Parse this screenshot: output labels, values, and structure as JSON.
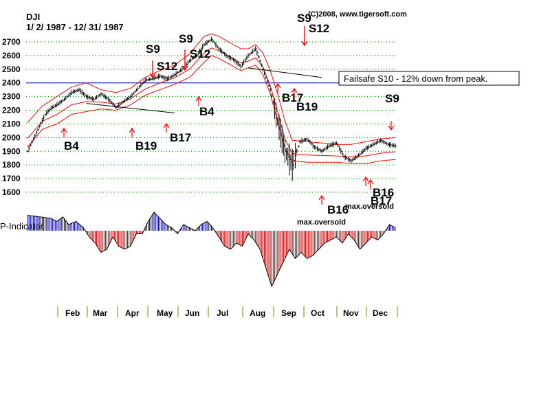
{
  "header": {
    "ticker": "DJI",
    "date_range": "1/ 2/ 1987 - 12/ 31/ 1987",
    "copyright": "(C)2008, www.tigersoft.com"
  },
  "colors": {
    "price": "#000000",
    "band": "#ff0000",
    "grid": "#008000",
    "reference_line": "#0000cc",
    "indicator_positive": "#0000aa",
    "indicator_negative": "#cc0000",
    "signal_arrow": "#ff0000"
  },
  "chart_data": {
    "type": "line",
    "title": "DJI",
    "subtitle": "1/ 2/ 1987 - 12/ 31/ 1987",
    "ylim": [
      1600,
      2700
    ],
    "y_ticks": [
      1600,
      1700,
      1800,
      1900,
      2000,
      2100,
      2200,
      2300,
      2400,
      2500,
      2600,
      2700
    ],
    "reference_line": 2400,
    "grid": true,
    "months": [
      "Feb",
      "Mar",
      "Apr",
      "May",
      "Jun",
      "Jul",
      "Aug",
      "Sep",
      "Oct",
      "Nov",
      "Dec"
    ],
    "series": [
      {
        "name": "DJI",
        "x": [
          0,
          4,
          8,
          12,
          16,
          20,
          25,
          30,
          35,
          40,
          45,
          50,
          55,
          60,
          66,
          70,
          75,
          80,
          85,
          90,
          95,
          100,
          105,
          110,
          115,
          120,
          125,
          130,
          135,
          140,
          145,
          150,
          155,
          160,
          165,
          170,
          175,
          180,
          185,
          190,
          195,
          200,
          205,
          210,
          215,
          220,
          225,
          230,
          235,
          240,
          245,
          250
        ],
        "values": [
          1900,
          1990,
          2080,
          2170,
          2215,
          2240,
          2280,
          2330,
          2350,
          2300,
          2280,
          2320,
          2280,
          2220,
          2270,
          2300,
          2360,
          2420,
          2430,
          2450,
          2430,
          2460,
          2500,
          2560,
          2600,
          2680,
          2720,
          2650,
          2600,
          2570,
          2520,
          2600,
          2650,
          2500,
          2350,
          2120,
          1900,
          1800,
          1970,
          1990,
          1930,
          1900,
          1940,
          1960,
          1860,
          1830,
          1870,
          1920,
          1950,
          1980,
          1950,
          1940
        ]
      },
      {
        "name": "Upper band",
        "x": [
          0,
          10,
          20,
          30,
          40,
          50,
          60,
          70,
          80,
          90,
          100,
          110,
          120,
          125,
          130,
          140,
          145,
          150,
          155,
          160,
          165,
          170,
          175,
          180,
          190,
          200,
          210,
          220,
          230,
          240,
          250
        ],
        "values": [
          2110,
          2230,
          2300,
          2370,
          2400,
          2350,
          2330,
          2360,
          2440,
          2490,
          2530,
          2610,
          2740,
          2760,
          2740,
          2680,
          2650,
          2650,
          2680,
          2620,
          2490,
          2320,
          2120,
          1980,
          1970,
          1960,
          1950,
          1950,
          1970,
          1990,
          2000
        ]
      },
      {
        "name": "Lower band",
        "x": [
          0,
          10,
          20,
          30,
          40,
          50,
          60,
          70,
          80,
          90,
          100,
          110,
          120,
          125,
          130,
          140,
          145,
          150,
          155,
          160,
          165,
          170,
          175,
          180,
          190,
          200,
          210,
          220,
          230,
          240,
          250
        ],
        "values": [
          1930,
          2060,
          2100,
          2170,
          2190,
          2210,
          2200,
          2240,
          2310,
          2350,
          2390,
          2440,
          2550,
          2600,
          2580,
          2520,
          2490,
          2510,
          2530,
          2460,
          2320,
          2120,
          1920,
          1830,
          1820,
          1820,
          1820,
          1810,
          1810,
          1830,
          1840
        ]
      },
      {
        "name": "P-Indicator",
        "x": [
          0,
          8,
          16,
          20,
          24,
          28,
          33,
          38,
          42,
          46,
          50,
          54,
          58,
          62,
          66,
          70,
          74,
          78,
          82,
          86,
          90,
          94,
          98,
          102,
          106,
          110,
          114,
          118,
          122,
          126,
          130,
          134,
          138,
          142,
          146,
          150,
          154,
          158,
          162,
          166,
          170,
          174,
          178,
          182,
          186,
          190,
          194,
          198,
          202,
          206,
          210,
          214,
          218,
          222,
          226,
          230,
          234,
          238,
          242,
          246,
          250
        ],
        "values": [
          50,
          45,
          40,
          30,
          45,
          20,
          30,
          10,
          -20,
          -40,
          -70,
          -60,
          -20,
          -50,
          -60,
          -50,
          -10,
          -10,
          30,
          60,
          40,
          20,
          10,
          -10,
          20,
          10,
          0,
          20,
          30,
          10,
          -20,
          -50,
          -60,
          -40,
          -50,
          -10,
          -30,
          -60,
          -120,
          -180,
          -140,
          -100,
          -60,
          -90,
          -70,
          -90,
          -80,
          -60,
          -40,
          -30,
          -20,
          -40,
          -10,
          -30,
          -60,
          -40,
          -20,
          -30,
          -10,
          20,
          10
        ]
      }
    ],
    "indicator_label": "P-Indicator",
    "annotations": [
      {
        "label": "B4",
        "x": 12,
        "dir": "up"
      },
      {
        "label": "B19",
        "x": 38,
        "dir": "up"
      },
      {
        "label": "B17",
        "x": 48,
        "dir": "up"
      },
      {
        "label": "S9",
        "x": 43,
        "dir": "down"
      },
      {
        "label": "S12",
        "x": 43,
        "dir": "down"
      },
      {
        "label": "S9",
        "x": 52,
        "dir": "down"
      },
      {
        "label": "S12",
        "x": 52,
        "dir": "down"
      },
      {
        "label": "B4",
        "x": 59,
        "dir": "up"
      },
      {
        "label": "B17",
        "x": 83,
        "dir": "up"
      },
      {
        "label": "B19",
        "x": 90,
        "dir": "up"
      },
      {
        "label": "S9",
        "x": 111,
        "dir": "down"
      },
      {
        "label": "S12",
        "x": 111,
        "dir": "down"
      },
      {
        "label": "B16",
        "x": 134,
        "dir": "up"
      },
      {
        "label": "B17",
        "x": 193,
        "dir": "up"
      },
      {
        "label": "B16",
        "x": 197,
        "dir": "up"
      },
      {
        "label": "S9",
        "x": 199,
        "dir": "down"
      }
    ],
    "text_labels": {
      "failsafe": "Failsafe S10 - 12% down from peak.",
      "max_oversold_1": "max.oversold",
      "max_oversold_2": "max.oversold"
    }
  }
}
